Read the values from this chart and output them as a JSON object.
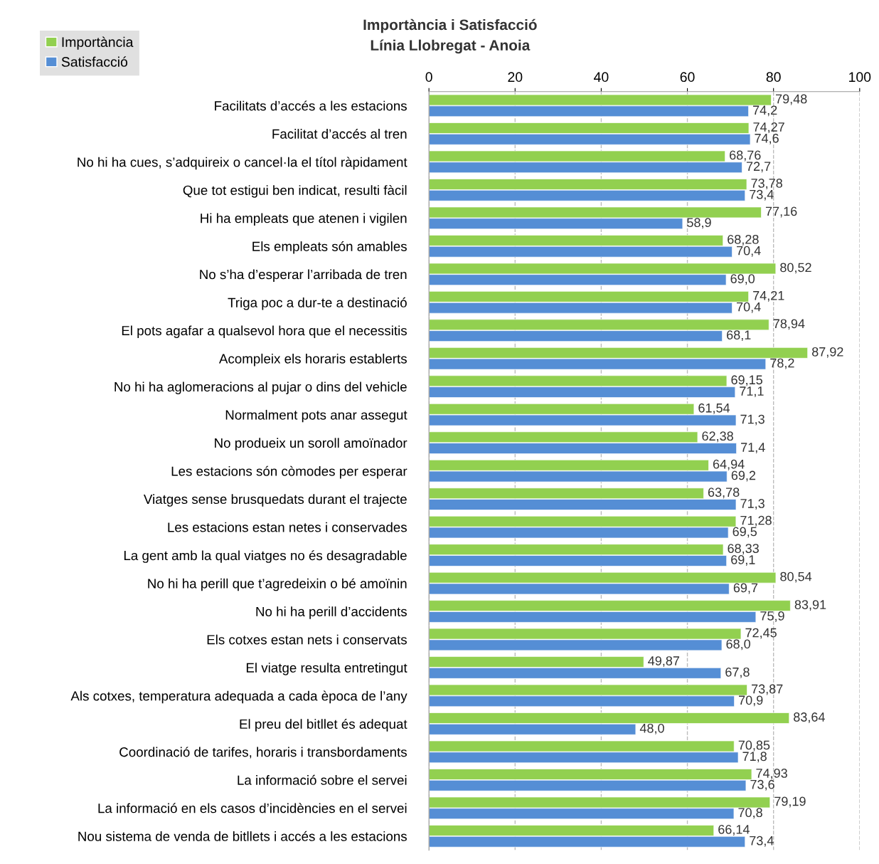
{
  "chart_data": {
    "type": "bar",
    "orientation": "horizontal",
    "title": "Importància i Satisfacció\nLínia Llobregat - Anoia",
    "categories": [
      "Facilitats d’accés a les estacions",
      "Facilitat d’accés al tren",
      "No hi ha cues, s’adquireix o cancel·la el títol ràpidament",
      "Que tot estigui ben indicat, resulti fàcil",
      "Hi ha empleats que atenen i vigilen",
      "Els empleats són amables",
      "No s’ha d’esperar l’arribada de tren",
      "Triga poc a dur-te a destinació",
      "El pots agafar a qualsevol hora que el necessitis",
      "Acompleix els horaris establerts",
      "No hi ha aglomeracions al pujar o dins del vehicle",
      "Normalment pots anar assegut",
      "No produeix un soroll amoïnador",
      "Les estacions són còmodes per esperar",
      "Viatges sense brusquedats durant el trajecte",
      "Les estacions estan netes i conservades",
      "La gent amb la qual viatges no és desagradable",
      "No hi ha perill que t’agredeixin o bé amoïnin",
      "No hi ha perill d’accidents",
      "Els cotxes estan nets i conservats",
      "El viatge resulta entretingut",
      "Als cotxes, temperatura adequada a cada època de l’any",
      "El preu del bitllet és adequat",
      "Coordinació de tarifes, horaris i transbordaments",
      "La informació sobre el servei",
      "La informació en els casos d’incidències en el servei",
      "Nou sistema de venda de bitllets i accés a les estacions"
    ],
    "series": [
      {
        "name": "Importància",
        "color": "#92d050",
        "values": [
          79.48,
          74.27,
          68.76,
          73.78,
          77.16,
          68.28,
          80.52,
          74.21,
          78.94,
          87.92,
          69.15,
          61.54,
          62.38,
          64.94,
          63.78,
          71.28,
          68.33,
          80.54,
          83.91,
          72.45,
          49.87,
          73.87,
          83.64,
          70.85,
          74.93,
          79.19,
          66.14
        ],
        "value_labels": [
          "79,48",
          "74,27",
          "68,76",
          "73,78",
          "77,16",
          "68,28",
          "80,52",
          "74,21",
          "78,94",
          "87,92",
          "69,15",
          "61,54",
          "62,38",
          "64,94",
          "63,78",
          "71,28",
          "68,33",
          "80,54",
          "83,91",
          "72,45",
          "49,87",
          "73,87",
          "83,64",
          "70,85",
          "74,93",
          "79,19",
          "66,14"
        ]
      },
      {
        "name": "Satisfacció",
        "color": "#558ed5",
        "values": [
          74.2,
          74.6,
          72.7,
          73.4,
          58.9,
          70.4,
          69.0,
          70.4,
          68.1,
          78.2,
          71.1,
          71.3,
          71.4,
          69.2,
          71.3,
          69.5,
          69.1,
          69.7,
          75.9,
          68.0,
          67.8,
          70.9,
          48.0,
          71.8,
          73.6,
          70.8,
          73.4
        ],
        "value_labels": [
          "74,2",
          "74,6",
          "72,7",
          "73,4",
          "58,9",
          "70,4",
          "69,0",
          "70,4",
          "68,1",
          "78,2",
          "71,1",
          "71,3",
          "71,4",
          "69,2",
          "71,3",
          "69,5",
          "69,1",
          "69,7",
          "75,9",
          "68,0",
          "67,8",
          "70,9",
          "48,0",
          "71,8",
          "73,6",
          "70,8",
          "73,4"
        ]
      }
    ],
    "xlim": [
      0,
      100
    ],
    "xticks": [
      0,
      20,
      40,
      60,
      80,
      100
    ],
    "grid": "x",
    "legend": "top left"
  }
}
